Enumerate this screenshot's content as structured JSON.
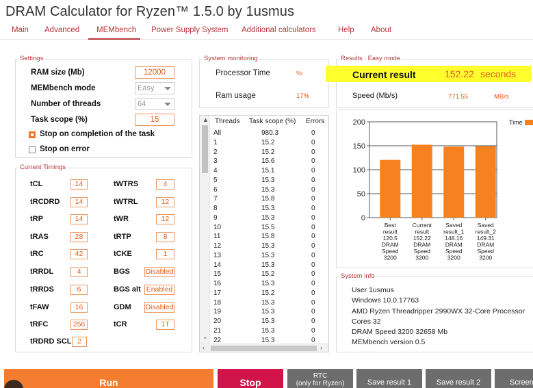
{
  "app": {
    "title": "DRAM Calculator for Ryzen™ 1.5.0 by 1usmus"
  },
  "tabs": [
    {
      "label": "Main"
    },
    {
      "label": "Advanced"
    },
    {
      "label": "MEMbench"
    },
    {
      "label": "Power Supply System"
    },
    {
      "label": "Additional calculators"
    },
    {
      "label": "Help"
    },
    {
      "label": "About"
    }
  ],
  "settings": {
    "group_label": "Settings",
    "ram_size_label": "RAM size (Mb)",
    "ram_size_value": "12000",
    "mode_label": "MEMbench mode",
    "mode_value": "Easy",
    "threads_label": "Number of threads",
    "threads_value": "64",
    "scope_label": "Task scope (%)",
    "scope_value": "15",
    "stop_completion_label": "Stop on completion of the task",
    "stop_completion_checked": true,
    "stop_error_label": "Stop on error",
    "stop_error_checked": false
  },
  "timings": {
    "group_label": "Current Timings",
    "left": [
      {
        "name": "tCL",
        "value": "14"
      },
      {
        "name": "tRCDRD",
        "value": "14"
      },
      {
        "name": "tRP",
        "value": "14"
      },
      {
        "name": "tRAS",
        "value": "28"
      },
      {
        "name": "tRC",
        "value": "42"
      },
      {
        "name": "tRRDL",
        "value": "4"
      },
      {
        "name": "tRRDS",
        "value": "6"
      },
      {
        "name": "tFAW",
        "value": "16"
      },
      {
        "name": "tRFC",
        "value": "256"
      },
      {
        "name": "tRDRD SCL",
        "value": "2"
      }
    ],
    "right": [
      {
        "name": "tWTRS",
        "value": "4"
      },
      {
        "name": "tWTRL",
        "value": "12"
      },
      {
        "name": "tWR",
        "value": "12"
      },
      {
        "name": "tRTP",
        "value": "8"
      },
      {
        "name": "tCKE",
        "value": "1"
      },
      {
        "name": "BGS",
        "value": "Disabled"
      },
      {
        "name": "BGS alt",
        "value": "Enabled"
      },
      {
        "name": "GDM",
        "value": "Disabled"
      },
      {
        "name": "tCR",
        "value": "1T"
      }
    ]
  },
  "monitoring": {
    "group_label": "System monitoring",
    "processor_label": "Processor Time",
    "processor_unit": "%",
    "ram_label": "Ram usage",
    "ram_value": "17%"
  },
  "threads_table": {
    "headers": [
      "Threads",
      "Task scope (%)",
      "Errors"
    ],
    "rows": [
      [
        "All",
        "980.3",
        "0"
      ],
      [
        "1",
        "15.2",
        "0"
      ],
      [
        "2",
        "15.2",
        "0"
      ],
      [
        "3",
        "15.6",
        "0"
      ],
      [
        "4",
        "15.1",
        "0"
      ],
      [
        "5",
        "15.3",
        "0"
      ],
      [
        "6",
        "15.3",
        "0"
      ],
      [
        "7",
        "15.8",
        "0"
      ],
      [
        "8",
        "15.3",
        "0"
      ],
      [
        "9",
        "15.3",
        "0"
      ],
      [
        "10",
        "15.5",
        "0"
      ],
      [
        "11",
        "15.8",
        "0"
      ],
      [
        "12",
        "15.3",
        "0"
      ],
      [
        "13",
        "15.3",
        "0"
      ],
      [
        "14",
        "15.3",
        "0"
      ],
      [
        "15",
        "15.2",
        "0"
      ],
      [
        "16",
        "15.3",
        "0"
      ],
      [
        "17",
        "15.2",
        "0"
      ],
      [
        "18",
        "15.3",
        "0"
      ],
      [
        "19",
        "15.3",
        "0"
      ],
      [
        "20",
        "15.3",
        "0"
      ],
      [
        "21",
        "15.3",
        "0"
      ],
      [
        "22",
        "15.3",
        "0"
      ]
    ]
  },
  "results": {
    "group_label": "Results : Easy mode",
    "current_label": "Current result",
    "current_value": "152.22",
    "current_unit": "seconds",
    "speed_label": "Speed (Mb/s)",
    "speed_value": "771.55",
    "speed_unit": "MB/s"
  },
  "chart_data": {
    "type": "bar",
    "categories": [
      [
        "Best",
        "result",
        "120.5",
        "DRAM",
        "Speed",
        "3200"
      ],
      [
        "Current",
        "result",
        "152.22",
        "DRAM",
        "Speed",
        "3200"
      ],
      [
        "Saved",
        "result_1",
        "148.16",
        "DRAM",
        "Speed",
        "3200"
      ],
      [
        "Saved",
        "result_2",
        "149.31",
        "DRAM",
        "Speed",
        "3200"
      ]
    ],
    "values": [
      120.5,
      152.22,
      148.16,
      149.31
    ],
    "ylim": [
      0,
      200
    ],
    "yticks": [
      0,
      50,
      100,
      150,
      200
    ],
    "legend": "Time",
    "legend_position": "top-right",
    "bar_color": "#f5821f",
    "grid": true
  },
  "sysinfo": {
    "group_label": "System info",
    "lines": [
      "User 1usmus",
      "Windows 10.0.17763",
      "AMD Ryzen Threadripper 2990WX 32-Core Processor",
      "Cores 32",
      "DRAM Speed 3200   32658 Mb",
      "MEMbench version 0.5"
    ]
  },
  "buttons": {
    "run": "Run",
    "stop": "Stop",
    "rtc_line1": "RTC",
    "rtc_line2": "(only for Ryzen)",
    "save1": "Save result 1",
    "save2": "Save result 2",
    "screenshot": "Screenshot"
  },
  "colors": {
    "accent": "#b8353a",
    "orange": "#f5821f",
    "run_bg": "#f47d30",
    "stop_bg": "#d1154a",
    "gray_btn": "#6d6d6d"
  }
}
